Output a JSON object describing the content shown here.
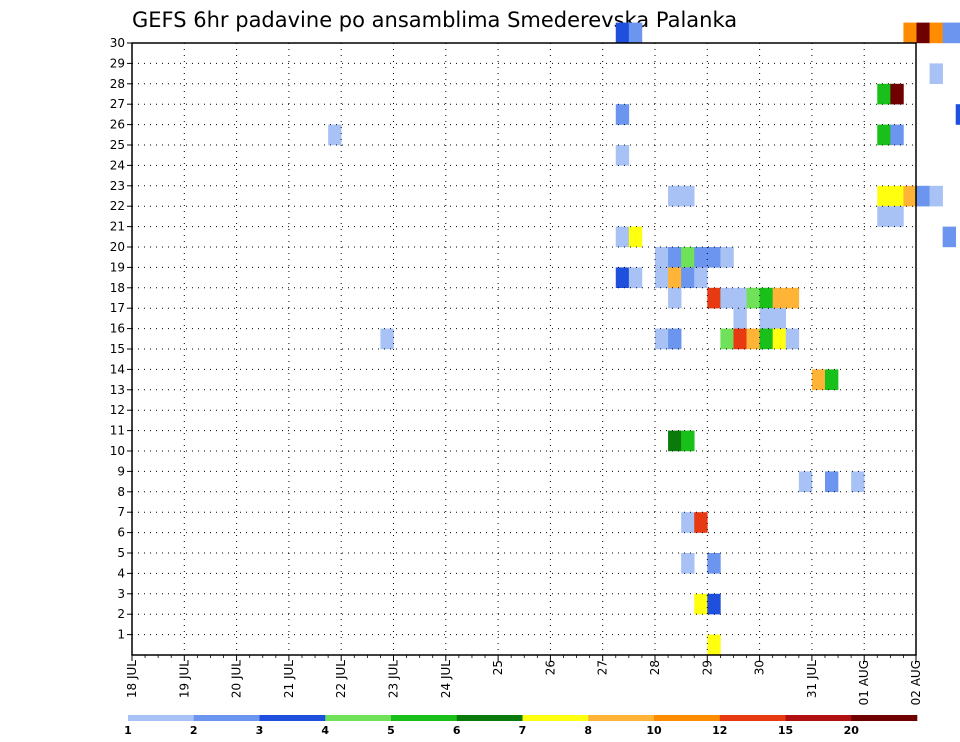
{
  "chart_data": {
    "type": "heatmap",
    "title": "GEFS 6hr padavine po ansamblima Smederevska Palanka",
    "xlabel": "",
    "ylabel": "",
    "x_tick_labels": [
      "18 JUL",
      "19 JUL",
      "20 JUL",
      "21 JUL",
      "22 JUL",
      "23 JUL",
      "24 JUL",
      "25",
      "26",
      "27",
      "28",
      "29",
      "30",
      "31 JUL",
      "01 AUG",
      "02 AUG"
    ],
    "y_tick_labels": [
      "1",
      "2",
      "3",
      "4",
      "5",
      "6",
      "7",
      "8",
      "9",
      "10",
      "11",
      "12",
      "13",
      "14",
      "15",
      "16",
      "17",
      "18",
      "19",
      "20",
      "21",
      "22",
      "23",
      "24",
      "25",
      "26",
      "27",
      "28",
      "29",
      "30"
    ],
    "grid": true,
    "legend": {
      "placement": "bottom",
      "labels": [
        "1",
        "2",
        "3",
        "4",
        "5",
        "6",
        "7",
        "8",
        "10",
        "12",
        "15",
        "20"
      ],
      "colors": [
        "#a9c2f5",
        "#6b95ee",
        "#1f4fdd",
        "#6fe25a",
        "#19c019",
        "#0a7a0a",
        "#ffff10",
        "#ffb437",
        "#ff8c00",
        "#e83a12",
        "#b01010",
        "#6e0000"
      ]
    },
    "cells": [
      {
        "m": 30,
        "t": 37,
        "v": 3
      },
      {
        "m": 30,
        "t": 38,
        "v": 2
      },
      {
        "m": 30,
        "t": 59,
        "v": 10
      },
      {
        "m": 30,
        "t": 60,
        "v": 20
      },
      {
        "m": 30,
        "t": 61,
        "v": 10
      },
      {
        "m": 30,
        "t": 62,
        "v": 2
      },
      {
        "m": 30,
        "t": 63,
        "v": 2
      },
      {
        "m": 30,
        "t": 64,
        "v": 1
      },
      {
        "m": 30,
        "t": 65,
        "v": 2
      },
      {
        "m": 30,
        "t": 66,
        "v": 3
      },
      {
        "m": 30,
        "t": 67,
        "v": 2
      },
      {
        "m": 30,
        "t": 68,
        "v": 1
      },
      {
        "m": 30,
        "t": 76,
        "v": 4
      },
      {
        "m": 30,
        "t": 77,
        "v": 4
      },
      {
        "m": 30,
        "t": 79,
        "v": 3
      },
      {
        "m": 30,
        "t": 80,
        "v": 5
      },
      {
        "m": 30,
        "t": 81,
        "v": 4
      },
      {
        "m": 28,
        "t": 61,
        "v": 1
      },
      {
        "m": 28,
        "t": 71,
        "v": 1
      },
      {
        "m": 27,
        "t": 57,
        "v": 5
      },
      {
        "m": 27,
        "t": 58,
        "v": 20
      },
      {
        "m": 26,
        "t": 37,
        "v": 2
      },
      {
        "m": 26,
        "t": 63,
        "v": 3
      },
      {
        "m": 26,
        "t": 64,
        "v": 1
      },
      {
        "m": 26,
        "t": 66,
        "v": 1
      },
      {
        "m": 26,
        "t": 82,
        "v": 1
      },
      {
        "m": 26,
        "t": 83,
        "v": 6
      },
      {
        "m": 26,
        "t": 84,
        "v": 4
      },
      {
        "m": 26,
        "t": 85,
        "v": 2
      },
      {
        "m": 26,
        "t": 86,
        "v": 1
      },
      {
        "m": 25,
        "t": 15,
        "v": 1
      },
      {
        "m": 25,
        "t": 57,
        "v": 5
      },
      {
        "m": 25,
        "t": 58,
        "v": 2
      },
      {
        "m": 24,
        "t": 37,
        "v": 1
      },
      {
        "m": 24,
        "t": 64,
        "v": 2
      },
      {
        "m": 24,
        "t": 65,
        "v": 1
      },
      {
        "m": 24,
        "t": 66,
        "v": 3
      },
      {
        "m": 24,
        "t": 67,
        "v": 10
      },
      {
        "m": 24,
        "t": 68,
        "v": 1
      },
      {
        "m": 24,
        "t": 71,
        "v": 2
      },
      {
        "m": 24,
        "t": 72,
        "v": 2
      },
      {
        "m": 24,
        "t": 73,
        "v": 2
      },
      {
        "m": 24,
        "t": 74,
        "v": 1
      },
      {
        "m": 23,
        "t": 74,
        "v": 1
      },
      {
        "m": 23,
        "t": 75,
        "v": 2
      },
      {
        "m": 23,
        "t": 80,
        "v": 4
      },
      {
        "m": 23,
        "t": 81,
        "v": 4
      },
      {
        "m": 22,
        "t": 41,
        "v": 1
      },
      {
        "m": 22,
        "t": 42,
        "v": 1
      },
      {
        "m": 22,
        "t": 57,
        "v": 7
      },
      {
        "m": 22,
        "t": 58,
        "v": 7
      },
      {
        "m": 22,
        "t": 59,
        "v": 8
      },
      {
        "m": 22,
        "t": 60,
        "v": 2
      },
      {
        "m": 22,
        "t": 61,
        "v": 1
      },
      {
        "m": 22,
        "t": 64,
        "v": 2
      },
      {
        "m": 22,
        "t": 65,
        "v": 2
      },
      {
        "m": 22,
        "t": 66,
        "v": 1
      },
      {
        "m": 22,
        "t": 68,
        "v": 1
      },
      {
        "m": 22,
        "t": 69,
        "v": 1
      },
      {
        "m": 21,
        "t": 57,
        "v": 1
      },
      {
        "m": 21,
        "t": 58,
        "v": 1
      },
      {
        "m": 21,
        "t": 82,
        "v": 1
      },
      {
        "m": 21,
        "t": 84,
        "v": 1
      },
      {
        "m": 20,
        "t": 37,
        "v": 1
      },
      {
        "m": 20,
        "t": 38,
        "v": 7
      },
      {
        "m": 20,
        "t": 62,
        "v": 2
      },
      {
        "m": 19,
        "t": 40,
        "v": 1
      },
      {
        "m": 19,
        "t": 41,
        "v": 2
      },
      {
        "m": 19,
        "t": 42,
        "v": 4
      },
      {
        "m": 19,
        "t": 43,
        "v": 2
      },
      {
        "m": 19,
        "t": 44,
        "v": 2
      },
      {
        "m": 19,
        "t": 45,
        "v": 1
      },
      {
        "m": 18,
        "t": 37,
        "v": 3
      },
      {
        "m": 18,
        "t": 38,
        "v": 1
      },
      {
        "m": 18,
        "t": 40,
        "v": 1
      },
      {
        "m": 18,
        "t": 41,
        "v": 8
      },
      {
        "m": 18,
        "t": 42,
        "v": 2
      },
      {
        "m": 18,
        "t": 43,
        "v": 1
      },
      {
        "m": 18,
        "t": 71,
        "v": 1
      },
      {
        "m": 18,
        "t": 72,
        "v": 1
      },
      {
        "m": 18,
        "t": 75,
        "v": 4
      },
      {
        "m": 18,
        "t": 76,
        "v": 2
      },
      {
        "m": 17,
        "t": 41,
        "v": 1
      },
      {
        "m": 17,
        "t": 44,
        "v": 12
      },
      {
        "m": 17,
        "t": 45,
        "v": 1
      },
      {
        "m": 17,
        "t": 46,
        "v": 1
      },
      {
        "m": 17,
        "t": 47,
        "v": 4
      },
      {
        "m": 17,
        "t": 48,
        "v": 5
      },
      {
        "m": 17,
        "t": 49,
        "v": 8
      },
      {
        "m": 17,
        "t": 50,
        "v": 8
      },
      {
        "m": 17,
        "t": 86,
        "v": 3
      },
      {
        "m": 17,
        "t": 87,
        "v": 1
      },
      {
        "m": 17,
        "t": 89,
        "v": 1
      },
      {
        "m": 16,
        "t": 46,
        "v": 1
      },
      {
        "m": 16,
        "t": 48,
        "v": 1
      },
      {
        "m": 16,
        "t": 49,
        "v": 1
      },
      {
        "m": 16,
        "t": 76,
        "v": 1
      },
      {
        "m": 15,
        "t": 19,
        "v": 1
      },
      {
        "m": 15,
        "t": 40,
        "v": 1
      },
      {
        "m": 15,
        "t": 41,
        "v": 2
      },
      {
        "m": 15,
        "t": 45,
        "v": 4
      },
      {
        "m": 15,
        "t": 46,
        "v": 12
      },
      {
        "m": 15,
        "t": 47,
        "v": 8
      },
      {
        "m": 15,
        "t": 48,
        "v": 5
      },
      {
        "m": 15,
        "t": 49,
        "v": 7
      },
      {
        "m": 15,
        "t": 50,
        "v": 1
      },
      {
        "m": 15,
        "t": 82,
        "v": 4
      },
      {
        "m": 15,
        "t": 85,
        "v": 7
      },
      {
        "m": 15,
        "t": 86,
        "v": 20
      },
      {
        "m": 15,
        "t": 88,
        "v": 1
      },
      {
        "m": 15,
        "t": 89,
        "v": 1
      },
      {
        "m": 13,
        "t": 52,
        "v": 8
      },
      {
        "m": 13,
        "t": 53,
        "v": 5
      },
      {
        "m": 11,
        "t": 90,
        "v": 2
      },
      {
        "m": 10,
        "t": 41,
        "v": 6
      },
      {
        "m": 10,
        "t": 42,
        "v": 5
      },
      {
        "m": 8,
        "t": 51,
        "v": 1
      },
      {
        "m": 8,
        "t": 53,
        "v": 2
      },
      {
        "m": 8,
        "t": 55,
        "v": 1
      },
      {
        "m": 8,
        "t": 89,
        "v": 3
      },
      {
        "m": 8,
        "t": 90,
        "v": 6
      },
      {
        "m": 7,
        "t": 82,
        "v": 1
      },
      {
        "m": 7,
        "t": 83,
        "v": 1
      },
      {
        "m": 6,
        "t": 42,
        "v": 1
      },
      {
        "m": 6,
        "t": 43,
        "v": 12
      },
      {
        "m": 6,
        "t": 87,
        "v": 2
      },
      {
        "m": 6,
        "t": 88,
        "v": 6
      },
      {
        "m": 6,
        "t": 89,
        "v": 4
      },
      {
        "m": 4,
        "t": 42,
        "v": 1
      },
      {
        "m": 4,
        "t": 44,
        "v": 2
      },
      {
        "m": 4,
        "t": 74,
        "v": 2
      },
      {
        "m": 4,
        "t": 75,
        "v": 4
      },
      {
        "m": 2,
        "t": 43,
        "v": 7
      },
      {
        "m": 2,
        "t": 44,
        "v": 3
      },
      {
        "m": 2,
        "t": 69,
        "v": 5
      },
      {
        "m": 0,
        "t": 44,
        "v": 7
      }
    ]
  }
}
